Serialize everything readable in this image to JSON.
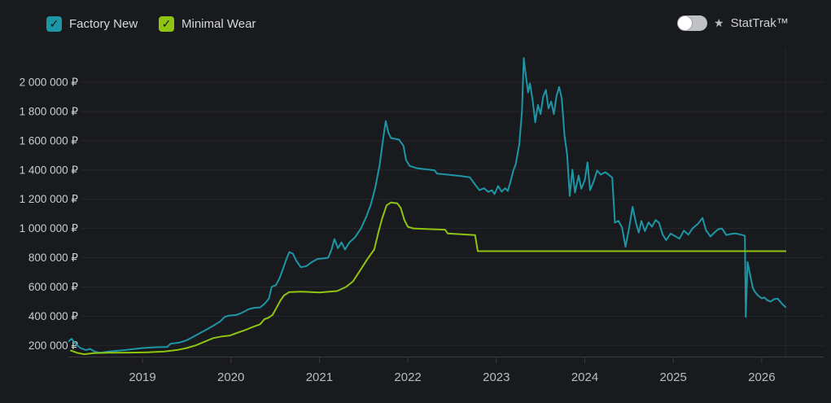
{
  "legend": {
    "checkmark": "✓",
    "factory_new": {
      "label": "Factory New",
      "color": "#1d96a6",
      "checked": true
    },
    "minimal_wear": {
      "label": "Minimal Wear",
      "color": "#8fc412",
      "checked": true
    }
  },
  "stattrak": {
    "star": "★",
    "label": "StatTrak™",
    "enabled": false
  },
  "colors": {
    "background": "#191a1e",
    "gridline": "#26272c",
    "axis_line": "#3a3b41",
    "y_label": "#c9ccd3",
    "x_label": "#b9bcc3",
    "factory_new_line": "#1d96a6",
    "minimal_wear_line": "#8fc412"
  },
  "chart_data": {
    "type": "line",
    "title": "",
    "xlabel": "",
    "ylabel": "",
    "currency": "RUB",
    "grid": true,
    "legend_position": "top-left",
    "xlim": [
      2018.1,
      2026.45
    ],
    "ylim": [
      120000,
      2260000
    ],
    "x_ticks": [
      {
        "value": 2019,
        "label": "2019"
      },
      {
        "value": 2020,
        "label": "2020"
      },
      {
        "value": 2021,
        "label": "2021"
      },
      {
        "value": 2022,
        "label": "2022"
      },
      {
        "value": 2023,
        "label": "2023"
      },
      {
        "value": 2024,
        "label": "2024"
      },
      {
        "value": 2025,
        "label": "2025"
      },
      {
        "value": 2026,
        "label": "2026"
      }
    ],
    "y_ticks": [
      {
        "value": 200000,
        "label": "200 000 ₽"
      },
      {
        "value": 400000,
        "label": "400 000 ₽"
      },
      {
        "value": 600000,
        "label": "600 000 ₽"
      },
      {
        "value": 800000,
        "label": "800 000 ₽"
      },
      {
        "value": 1000000,
        "label": "1 000 000 ₽"
      },
      {
        "value": 1200000,
        "label": "1 200 000 ₽"
      },
      {
        "value": 1400000,
        "label": "1 400 000 ₽"
      },
      {
        "value": 1600000,
        "label": "1 600 000 ₽"
      },
      {
        "value": 1800000,
        "label": "1 800 000 ₽"
      },
      {
        "value": 2000000,
        "label": "2 000 000 ₽"
      }
    ],
    "series": [
      {
        "id": "factory-new",
        "name": "Factory New",
        "color": "#1d96a6",
        "points": [
          [
            2018.17,
            230000
          ],
          [
            2018.2,
            246000
          ],
          [
            2018.24,
            212000
          ],
          [
            2018.3,
            182000
          ],
          [
            2018.36,
            168000
          ],
          [
            2018.41,
            176000
          ],
          [
            2018.46,
            158000
          ],
          [
            2018.52,
            150000
          ],
          [
            2018.62,
            158000
          ],
          [
            2018.8,
            168000
          ],
          [
            2019.0,
            182000
          ],
          [
            2019.15,
            188000
          ],
          [
            2019.28,
            190000
          ],
          [
            2019.32,
            212000
          ],
          [
            2019.42,
            220000
          ],
          [
            2019.5,
            235000
          ],
          [
            2019.6,
            268000
          ],
          [
            2019.7,
            300000
          ],
          [
            2019.8,
            335000
          ],
          [
            2019.88,
            365000
          ],
          [
            2019.93,
            395000
          ],
          [
            2019.97,
            403000
          ],
          [
            2020.06,
            408000
          ],
          [
            2020.13,
            425000
          ],
          [
            2020.2,
            447000
          ],
          [
            2020.26,
            457000
          ],
          [
            2020.33,
            460000
          ],
          [
            2020.38,
            485000
          ],
          [
            2020.43,
            520000
          ],
          [
            2020.46,
            600000
          ],
          [
            2020.51,
            613000
          ],
          [
            2020.55,
            660000
          ],
          [
            2020.59,
            725000
          ],
          [
            2020.63,
            795000
          ],
          [
            2020.66,
            838000
          ],
          [
            2020.7,
            828000
          ],
          [
            2020.74,
            778000
          ],
          [
            2020.79,
            735000
          ],
          [
            2020.85,
            742000
          ],
          [
            2020.91,
            768000
          ],
          [
            2020.98,
            792000
          ],
          [
            2021.05,
            795000
          ],
          [
            2021.1,
            800000
          ],
          [
            2021.14,
            860000
          ],
          [
            2021.17,
            928000
          ],
          [
            2021.21,
            865000
          ],
          [
            2021.25,
            905000
          ],
          [
            2021.29,
            856000
          ],
          [
            2021.34,
            905000
          ],
          [
            2021.4,
            938000
          ],
          [
            2021.47,
            1000000
          ],
          [
            2021.53,
            1080000
          ],
          [
            2021.58,
            1160000
          ],
          [
            2021.63,
            1275000
          ],
          [
            2021.68,
            1430000
          ],
          [
            2021.72,
            1610000
          ],
          [
            2021.75,
            1735000
          ],
          [
            2021.78,
            1655000
          ],
          [
            2021.81,
            1618000
          ],
          [
            2021.9,
            1608000
          ],
          [
            2021.95,
            1565000
          ],
          [
            2021.98,
            1468000
          ],
          [
            2022.02,
            1428000
          ],
          [
            2022.1,
            1412000
          ],
          [
            2022.2,
            1405000
          ],
          [
            2022.3,
            1398000
          ],
          [
            2022.33,
            1375000
          ],
          [
            2022.45,
            1368000
          ],
          [
            2022.58,
            1360000
          ],
          [
            2022.7,
            1350000
          ],
          [
            2022.76,
            1300000
          ],
          [
            2022.81,
            1262000
          ],
          [
            2022.86,
            1275000
          ],
          [
            2022.91,
            1250000
          ],
          [
            2022.95,
            1262000
          ],
          [
            2022.98,
            1235000
          ],
          [
            2023.02,
            1290000
          ],
          [
            2023.06,
            1252000
          ],
          [
            2023.1,
            1275000
          ],
          [
            2023.13,
            1256000
          ],
          [
            2023.16,
            1320000
          ],
          [
            2023.19,
            1392000
          ],
          [
            2023.22,
            1440000
          ],
          [
            2023.26,
            1580000
          ],
          [
            2023.29,
            1800000
          ],
          [
            2023.31,
            2165000
          ],
          [
            2023.33,
            2060000
          ],
          [
            2023.36,
            1930000
          ],
          [
            2023.38,
            1992000
          ],
          [
            2023.41,
            1878000
          ],
          [
            2023.44,
            1725000
          ],
          [
            2023.47,
            1845000
          ],
          [
            2023.5,
            1782000
          ],
          [
            2023.53,
            1902000
          ],
          [
            2023.56,
            1948000
          ],
          [
            2023.59,
            1820000
          ],
          [
            2023.62,
            1868000
          ],
          [
            2023.65,
            1782000
          ],
          [
            2023.68,
            1905000
          ],
          [
            2023.71,
            1968000
          ],
          [
            2023.74,
            1888000
          ],
          [
            2023.77,
            1640000
          ],
          [
            2023.8,
            1505000
          ],
          [
            2023.83,
            1222000
          ],
          [
            2023.86,
            1402000
          ],
          [
            2023.89,
            1245000
          ],
          [
            2023.93,
            1362000
          ],
          [
            2023.96,
            1272000
          ],
          [
            2024.0,
            1330000
          ],
          [
            2024.03,
            1452000
          ],
          [
            2024.06,
            1262000
          ],
          [
            2024.1,
            1322000
          ],
          [
            2024.14,
            1396000
          ],
          [
            2024.18,
            1368000
          ],
          [
            2024.23,
            1385000
          ],
          [
            2024.27,
            1368000
          ],
          [
            2024.31,
            1348000
          ],
          [
            2024.34,
            1040000
          ],
          [
            2024.38,
            1052000
          ],
          [
            2024.42,
            1008000
          ],
          [
            2024.46,
            875000
          ],
          [
            2024.5,
            1002000
          ],
          [
            2024.54,
            1148000
          ],
          [
            2024.58,
            1035000
          ],
          [
            2024.61,
            972000
          ],
          [
            2024.64,
            1052000
          ],
          [
            2024.68,
            982000
          ],
          [
            2024.72,
            1042000
          ],
          [
            2024.76,
            1012000
          ],
          [
            2024.8,
            1058000
          ],
          [
            2024.84,
            1038000
          ],
          [
            2024.88,
            958000
          ],
          [
            2024.92,
            920000
          ],
          [
            2024.97,
            965000
          ],
          [
            2025.02,
            948000
          ],
          [
            2025.07,
            930000
          ],
          [
            2025.12,
            985000
          ],
          [
            2025.17,
            958000
          ],
          [
            2025.22,
            1002000
          ],
          [
            2025.28,
            1032000
          ],
          [
            2025.33,
            1072000
          ],
          [
            2025.37,
            988000
          ],
          [
            2025.42,
            945000
          ],
          [
            2025.47,
            975000
          ],
          [
            2025.51,
            995000
          ],
          [
            2025.55,
            1000000
          ],
          [
            2025.6,
            955000
          ],
          [
            2025.65,
            962000
          ],
          [
            2025.7,
            966000
          ],
          [
            2025.75,
            960000
          ],
          [
            2025.8,
            952000
          ],
          [
            2025.81,
            948000
          ],
          [
            2025.82,
            395000
          ],
          [
            2025.84,
            770000
          ],
          [
            2025.87,
            678000
          ],
          [
            2025.9,
            592000
          ],
          [
            2025.93,
            560000
          ],
          [
            2025.96,
            540000
          ],
          [
            2026.0,
            522000
          ],
          [
            2026.03,
            528000
          ],
          [
            2026.06,
            510000
          ],
          [
            2026.1,
            500000
          ],
          [
            2026.14,
            516000
          ],
          [
            2026.18,
            520000
          ],
          [
            2026.22,
            492000
          ],
          [
            2026.25,
            472000
          ],
          [
            2026.27,
            462000
          ]
        ]
      },
      {
        "id": "minimal-wear",
        "name": "Minimal Wear",
        "color": "#8fc412",
        "points": [
          [
            2018.19,
            165000
          ],
          [
            2018.26,
            150000
          ],
          [
            2018.34,
            140000
          ],
          [
            2018.45,
            147000
          ],
          [
            2018.6,
            150000
          ],
          [
            2018.85,
            151000
          ],
          [
            2019.05,
            153000
          ],
          [
            2019.25,
            158000
          ],
          [
            2019.4,
            170000
          ],
          [
            2019.5,
            182000
          ],
          [
            2019.6,
            200000
          ],
          [
            2019.7,
            225000
          ],
          [
            2019.8,
            250000
          ],
          [
            2019.9,
            262000
          ],
          [
            2019.99,
            268000
          ],
          [
            2020.08,
            288000
          ],
          [
            2020.16,
            305000
          ],
          [
            2020.24,
            325000
          ],
          [
            2020.33,
            345000
          ],
          [
            2020.38,
            380000
          ],
          [
            2020.42,
            388000
          ],
          [
            2020.47,
            408000
          ],
          [
            2020.52,
            462000
          ],
          [
            2020.56,
            508000
          ],
          [
            2020.6,
            542000
          ],
          [
            2020.66,
            565000
          ],
          [
            2020.8,
            568000
          ],
          [
            2021.0,
            562000
          ],
          [
            2021.2,
            572000
          ],
          [
            2021.3,
            600000
          ],
          [
            2021.38,
            638000
          ],
          [
            2021.46,
            712000
          ],
          [
            2021.54,
            788000
          ],
          [
            2021.62,
            856000
          ],
          [
            2021.67,
            980000
          ],
          [
            2021.71,
            1070000
          ],
          [
            2021.76,
            1158000
          ],
          [
            2021.81,
            1178000
          ],
          [
            2021.88,
            1172000
          ],
          [
            2021.92,
            1140000
          ],
          [
            2021.96,
            1058000
          ],
          [
            2022.0,
            1012000
          ],
          [
            2022.06,
            1000000
          ],
          [
            2022.2,
            996000
          ],
          [
            2022.42,
            992000
          ],
          [
            2022.45,
            966000
          ],
          [
            2022.6,
            960000
          ],
          [
            2022.76,
            955000
          ],
          [
            2022.79,
            845000
          ],
          [
            2026.27,
            845000
          ]
        ]
      }
    ]
  }
}
